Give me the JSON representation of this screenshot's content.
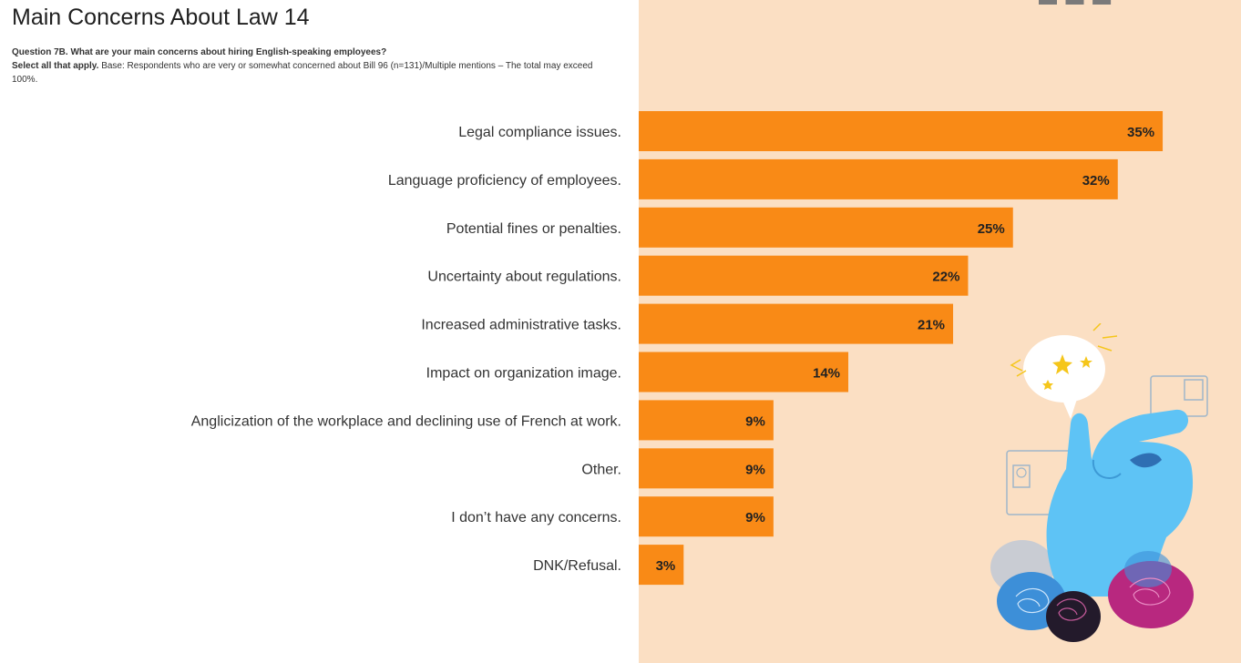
{
  "title": "Main Concerns About Law 14",
  "question": {
    "line1": "Question 7B. What are your main concerns about hiring English-speaking employees?",
    "select_label": "Select all that apply.",
    "base_text": "Base: Respondents who are very or somewhat concerned about Bill 96 (n=131)/Multiple mentions – The total may exceed 100%."
  },
  "chart_data": {
    "type": "bar",
    "orientation": "horizontal",
    "categories": [
      "Legal compliance issues.",
      "Language proficiency of employees.",
      "Potential fines or penalties.",
      "Uncertainty about regulations.",
      "Increased administrative tasks.",
      "Impact on organization image.",
      "Anglicization of the workplace and declining use of French at work.",
      "Other.",
      "I don’t have any concerns.",
      "DNK/Refusal."
    ],
    "values": [
      35,
      32,
      25,
      22,
      21,
      14,
      9,
      9,
      9,
      3
    ],
    "value_labels": [
      "35%",
      "32%",
      "25%",
      "22%",
      "21%",
      "14%",
      "9%",
      "9%",
      "9%",
      "3%"
    ],
    "bar_color": "#f98a16",
    "panel_color": "#fbdfc3",
    "grid": false,
    "legend": "none"
  },
  "illustration": {
    "icon": "hand-with-speech-bubbles-illustration",
    "colors": {
      "hand": "#5ec3f5",
      "bubble_pink": "#b8287f",
      "bubble_dark": "#231a2b",
      "bubble_blue": "#3d8fd8",
      "stars": "#f5c61b"
    }
  }
}
